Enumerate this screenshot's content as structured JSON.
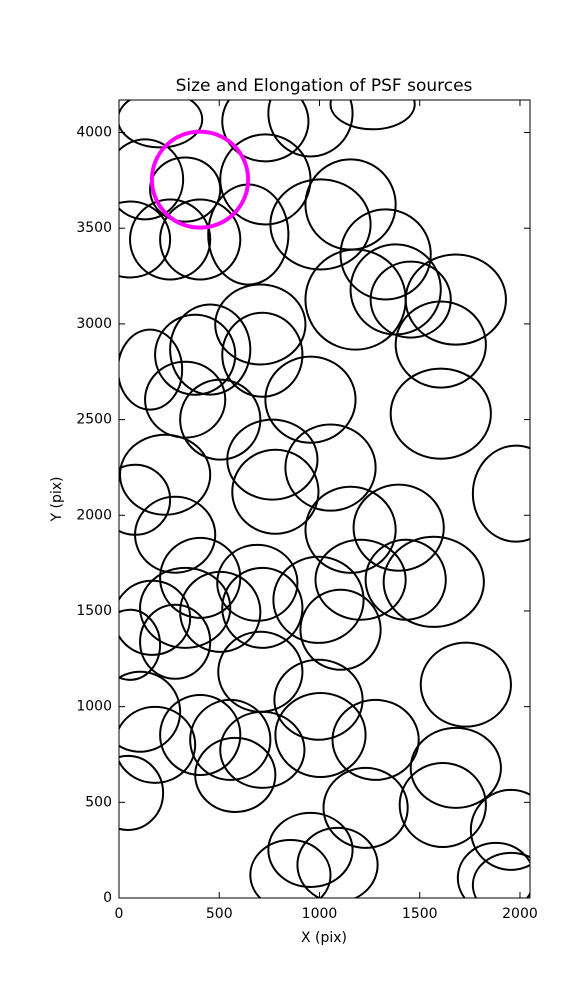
{
  "chart_data": {
    "type": "ellipse",
    "title": "Size and Elongation of PSF sources",
    "xlabel": "X (pix)",
    "ylabel": "Y (pix)",
    "xlim": [
      0,
      2050
    ],
    "ylim": [
      0,
      4170
    ],
    "xticks": [
      0,
      500,
      1000,
      1500,
      2000
    ],
    "yticks": [
      0,
      500,
      1000,
      1500,
      2000,
      2500,
      3000,
      3500,
      4000
    ],
    "series": [
      {
        "color": "#000000",
        "x": [
          205,
          730,
          955,
          1265,
          130,
          330,
          730,
          55,
          255,
          405,
          645,
          1005,
          1155,
          1330,
          1380,
          1455,
          1680,
          1180,
          1605,
          705,
          715,
          380,
          455,
          155,
          330,
          505,
          955,
          1605,
          765,
          1055,
          230,
          780,
          80,
          280,
          1155,
          1395,
          1980,
          405,
          690,
          995,
          330,
          505,
          715,
          165,
          280,
          1105,
          55,
          1205,
          1430,
          1570,
          1730,
          705,
          995,
          105,
          405,
          180,
          555,
          715,
          580,
          1005,
          1280,
          1680,
          45,
          1230,
          1615,
          955,
          1090,
          1955,
          855,
          1880,
          1955
        ],
        "y": [
          4069,
          4058,
          4100,
          4148,
          3755,
          3702,
          3755,
          3441,
          3441,
          3441,
          3467,
          3520,
          3624,
          3363,
          3180,
          3127,
          3127,
          3127,
          2892,
          2997,
          2839,
          2839,
          2866,
          2761,
          2604,
          2500,
          2604,
          2531,
          2291,
          2249,
          2212,
          2123,
          2081,
          1898,
          1924,
          1935,
          2113,
          1673,
          1647,
          1558,
          1516,
          1495,
          1516,
          1464,
          1339,
          1402,
          1323,
          1663,
          1663,
          1652,
          1115,
          1182,
          1036,
          973,
          852,
          800,
          826,
          774,
          643,
          852,
          826,
          680,
          549,
          471,
          486,
          251,
          173,
          356,
          120,
          105,
          68
        ],
        "width": [
          420,
          430,
          420,
          420,
          380,
          350,
          450,
          400,
          400,
          400,
          400,
          500,
          450,
          450,
          450,
          400,
          500,
          500,
          450,
          450,
          400,
          400,
          400,
          320,
          400,
          400,
          450,
          500,
          450,
          450,
          450,
          430,
          350,
          400,
          450,
          450,
          430,
          400,
          400,
          450,
          450,
          400,
          400,
          380,
          350,
          400,
          300,
          450,
          400,
          500,
          450,
          420,
          440,
          400,
          400,
          400,
          400,
          420,
          400,
          450,
          430,
          450,
          350,
          420,
          430,
          420,
          400,
          400,
          400,
          380,
          380
        ],
        "height": [
          293,
          418,
          450,
          262,
          418,
          335,
          471,
          397,
          418,
          418,
          523,
          471,
          471,
          471,
          471,
          397,
          471,
          523,
          450,
          418,
          439,
          418,
          471,
          418,
          397,
          418,
          450,
          471,
          418,
          450,
          418,
          439,
          366,
          397,
          450,
          450,
          502,
          418,
          397,
          450,
          418,
          418,
          418,
          387,
          387,
          418,
          366,
          418,
          418,
          471,
          439,
          418,
          418,
          418,
          418,
          397,
          418,
          397,
          387,
          439,
          418,
          418,
          387,
          418,
          439,
          387,
          387,
          418,
          366,
          366,
          335
        ]
      },
      {
        "color": "#ff00ff",
        "x": [
          404
        ],
        "y": [
          3754
        ],
        "width": [
          480
        ],
        "height": [
          502
        ]
      }
    ]
  }
}
